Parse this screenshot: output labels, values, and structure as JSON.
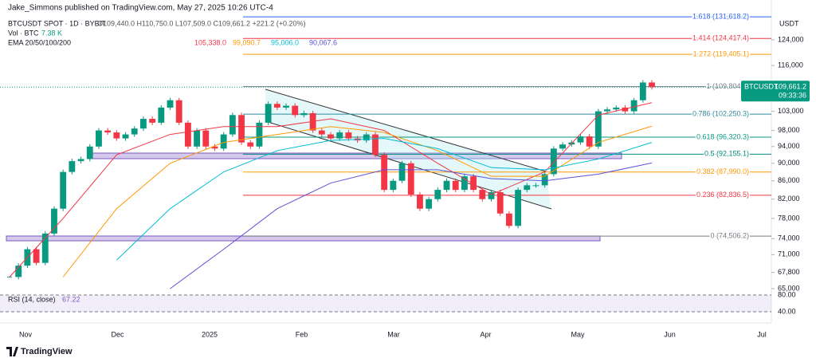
{
  "header": {
    "publisher": "Jake_Simmons published on TradingView.com, May 27, 2025 10:26 UTC-4",
    "symbol": "BTCUSDT SPOT · 1D · BYBIT",
    "ohlc": "O109,440.0 H110,750.0 L107,509.0 C109,661.2 +221.2 (+0.20%)",
    "vol_title": "Vol · BTC",
    "vol_value": "7.38 K",
    "ema_title": "EMA 20/50/100/200",
    "currency": "USDT",
    "brand": "TradingView"
  },
  "chart_data": {
    "type": "candlestick",
    "log_scale": true,
    "up_color": "#089981",
    "down_color": "#f23645",
    "close": [
      67000,
      69000,
      72000,
      69500,
      75000,
      80000,
      88000,
      90500,
      91000,
      94000,
      98000,
      97500,
      96000,
      97000,
      98500,
      101000,
      100000,
      104000,
      106000,
      100000,
      94000,
      98000,
      94000,
      93500,
      97000,
      102000,
      95000,
      94000,
      100000,
      105000,
      104000,
      104500,
      102000,
      102500,
      98000,
      97000,
      96000,
      97500,
      96000,
      95500,
      97000,
      92000,
      84000,
      86000,
      90000,
      83000,
      80000,
      82000,
      84000,
      86000,
      84000,
      87000,
      84000,
      82000,
      83500,
      79000,
      76500,
      84000,
      85000,
      85000,
      87500,
      93500,
      94500,
      95000,
      96500,
      94000,
      103000,
      103500,
      104000,
      103000,
      106000,
      111000,
      109661.2
    ],
    "ema": [
      {
        "color": "#f23645",
        "last_label": "105,338.0",
        "values": [
          67000,
          78000,
          92000,
          97000,
          99000,
          99000,
          101000,
          98000,
          90000,
          83000,
          88000,
          102000,
          105338
        ]
      },
      {
        "color": "#ff9800",
        "last_label": "99,090.7",
        "values": [
          null,
          67000,
          80000,
          90000,
          95000,
          97000,
          99000,
          97500,
          93000,
          87000,
          87000,
          95000,
          99090.7
        ]
      },
      {
        "color": "#00bcd4",
        "last_label": "95,006.0",
        "values": [
          null,
          null,
          70000,
          80000,
          88000,
          93000,
          95500,
          96000,
          93500,
          89000,
          88500,
          91000,
          95006
        ]
      },
      {
        "color": "#5b52d6",
        "last_label": "90,067.6",
        "values": [
          null,
          null,
          null,
          65000,
          72000,
          80000,
          85500,
          88500,
          88500,
          86500,
          86000,
          87500,
          90067.6
        ]
      }
    ],
    "fib": [
      {
        "price": 131618.2,
        "label": "1.618 (131,618.2)",
        "color": "#2962ff"
      },
      {
        "price": 124417.4,
        "label": "1.414 (124,417.4)",
        "color": "#f23645"
      },
      {
        "price": 119405.1,
        "label": "1.272 (119,405.1)",
        "color": "#ff9800"
      },
      {
        "price": 109804.1,
        "label": "1 (109,804.1)",
        "color": "#787b86"
      },
      {
        "price": 102250.3,
        "label": "0.786 (102,250.3)",
        "color": "#2e8b9a"
      },
      {
        "price": 96320.3,
        "label": "0.618 (96,320.3)",
        "color": "#089981"
      },
      {
        "price": 92155.1,
        "label": "0.5 (92,155.1)",
        "color": "#00897b"
      },
      {
        "price": 87990,
        "label": "0.382 (87,990.0)",
        "color": "#ff9800"
      },
      {
        "price": 82836.5,
        "label": "0.236 (82,836.5)",
        "color": "#f23645"
      },
      {
        "price": 74506.2,
        "label": "0 (74,506.2)",
        "color": "#787b86"
      }
    ],
    "ylim": [
      64600,
      137500
    ],
    "yticks": [
      {
        "value": 124000,
        "label": "124,000"
      },
      {
        "value": 116000,
        "label": "116,000"
      },
      {
        "value": 103000,
        "label": "103,000"
      },
      {
        "value": 98000,
        "label": "98,000"
      },
      {
        "value": 94000,
        "label": "94,000"
      },
      {
        "value": 90000,
        "label": "90,000"
      },
      {
        "value": 86000,
        "label": "86,000"
      },
      {
        "value": 82000,
        "label": "82,000"
      },
      {
        "value": 78000,
        "label": "78,000"
      },
      {
        "value": 74000,
        "label": "74,000"
      },
      {
        "value": 71000,
        "label": "71,000"
      },
      {
        "value": 67800,
        "label": "67,800"
      },
      {
        "value": 65000,
        "label": "65,000"
      }
    ],
    "price_tag": {
      "symbol": "BTCUSDT",
      "value": 109661.2,
      "label": "109,661.2",
      "timer": "09:33:36"
    },
    "x_labels": [
      "Nov",
      "Dec",
      "2025",
      "Feb",
      "Mar",
      "Apr",
      "May",
      "Jun",
      "Jul"
    ],
    "rsi": {
      "title": "RSI (14, close)",
      "value_label": "67.22",
      "ylim": [
        20,
        100
      ],
      "yticks": [
        {
          "value": 80,
          "label": "80.00"
        },
        {
          "value": 40,
          "label": "40.00"
        }
      ]
    }
  }
}
